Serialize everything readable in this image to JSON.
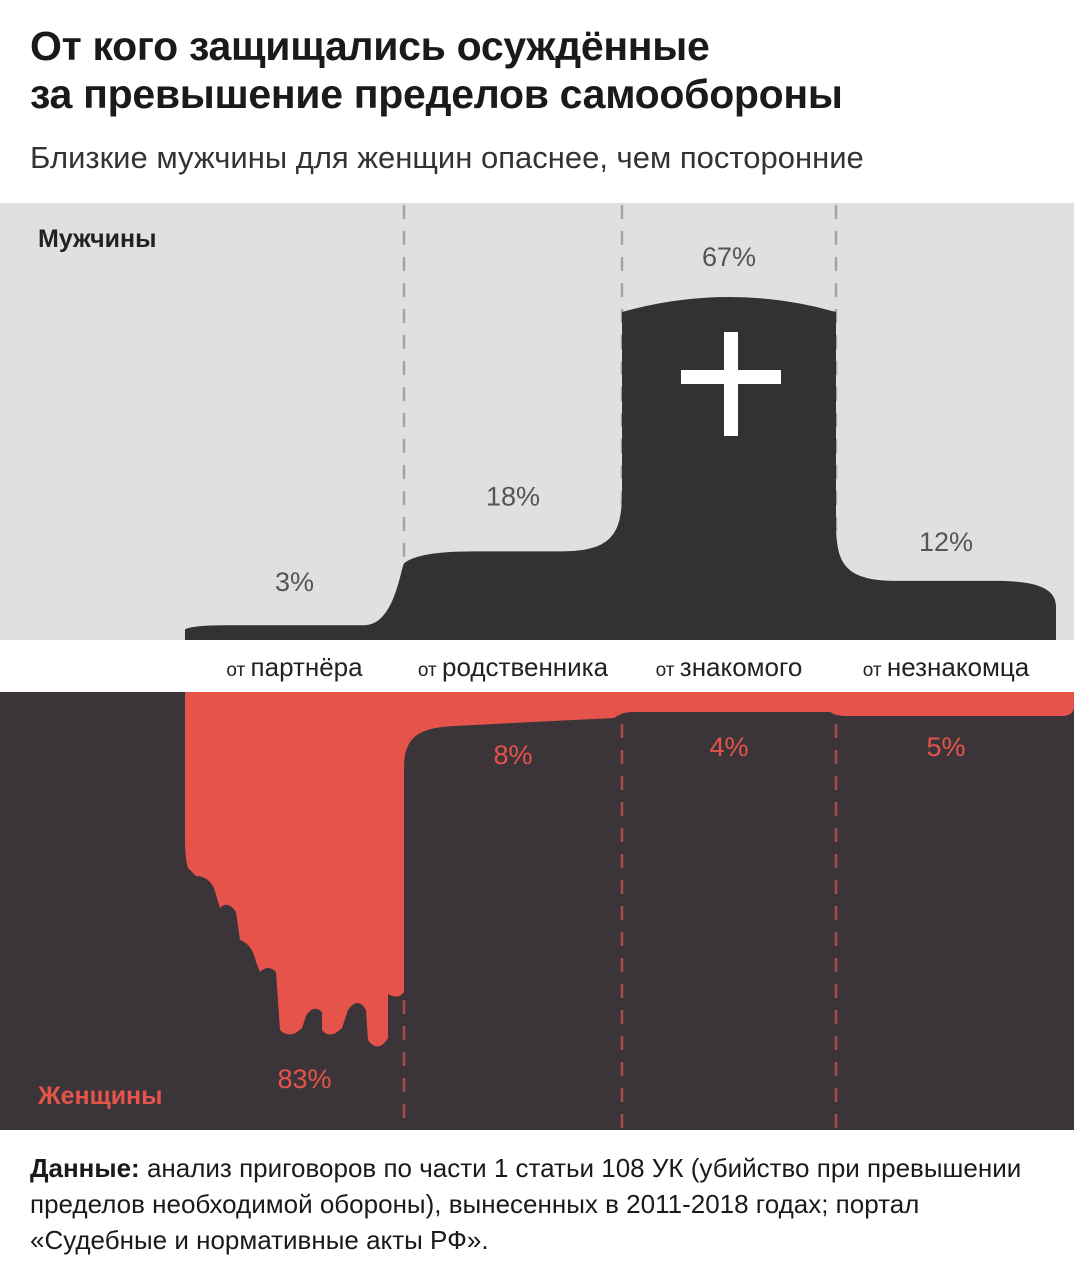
{
  "title_line1": "От кого защищались осуждённые",
  "title_line2": "за превышение пределов самообороны",
  "subtitle": "Близкие мужчины для женщин опаснее, чем посторонние",
  "colors": {
    "men_bg": "#e0e0e0",
    "men_fill": "#333131",
    "women_bg": "#3b3539",
    "women_fill": "#e5534b",
    "divider_light": "#a3a3a3",
    "divider_dark": "#a84a47"
  },
  "chart_data": {
    "type": "bar",
    "categories": [
      "от партнёра",
      "от родственника",
      "от знакомого",
      "от незнакомца"
    ],
    "category_labels": [
      {
        "prefix": "от",
        "word": "партнёра"
      },
      {
        "prefix": "от",
        "word": "родственника"
      },
      {
        "prefix": "от",
        "word": "знакомого"
      },
      {
        "prefix": "от",
        "word": "незнакомца"
      }
    ],
    "series": [
      {
        "name": "Мужчины",
        "values": [
          3,
          18,
          67,
          12
        ],
        "labels": [
          "3%",
          "18%",
          "67%",
          "12%"
        ]
      },
      {
        "name": "Женщины",
        "values": [
          83,
          8,
          4,
          5
        ],
        "labels": [
          "83%",
          "8%",
          "4%",
          "5%"
        ]
      }
    ],
    "ylim": [
      0,
      100
    ],
    "icon": "plus-icon"
  },
  "footer": {
    "label": "Данные:",
    "text": "анализ приговоров по части 1 статьи 108 УК (убийство при превышении пределов необходимой обороны), вынесенных в 2011-2018 годах; портал «Судебные и нормативные акты РФ»."
  }
}
